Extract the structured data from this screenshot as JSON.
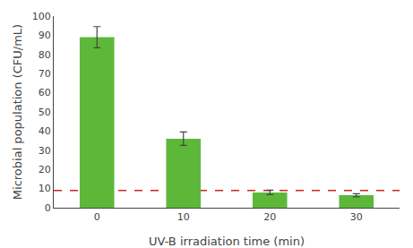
{
  "chart_data": {
    "type": "bar",
    "categories": [
      "0",
      "10",
      "20",
      "30"
    ],
    "values": [
      89,
      36,
      8,
      6.5
    ],
    "errors": [
      5.5,
      3.5,
      1.2,
      0.8
    ],
    "color": "#5DB83A",
    "hline": {
      "y": 9,
      "color": "#CC2222",
      "line_style": "dashed"
    },
    "xlabel": "UV-B irradiation time (min)",
    "ylabel": "Microbial population (CFU/mL)",
    "ylim": [
      0,
      100
    ],
    "yticks": [
      0,
      10,
      20,
      30,
      40,
      50,
      60,
      70,
      80,
      90,
      100
    ],
    "grid": false
  }
}
